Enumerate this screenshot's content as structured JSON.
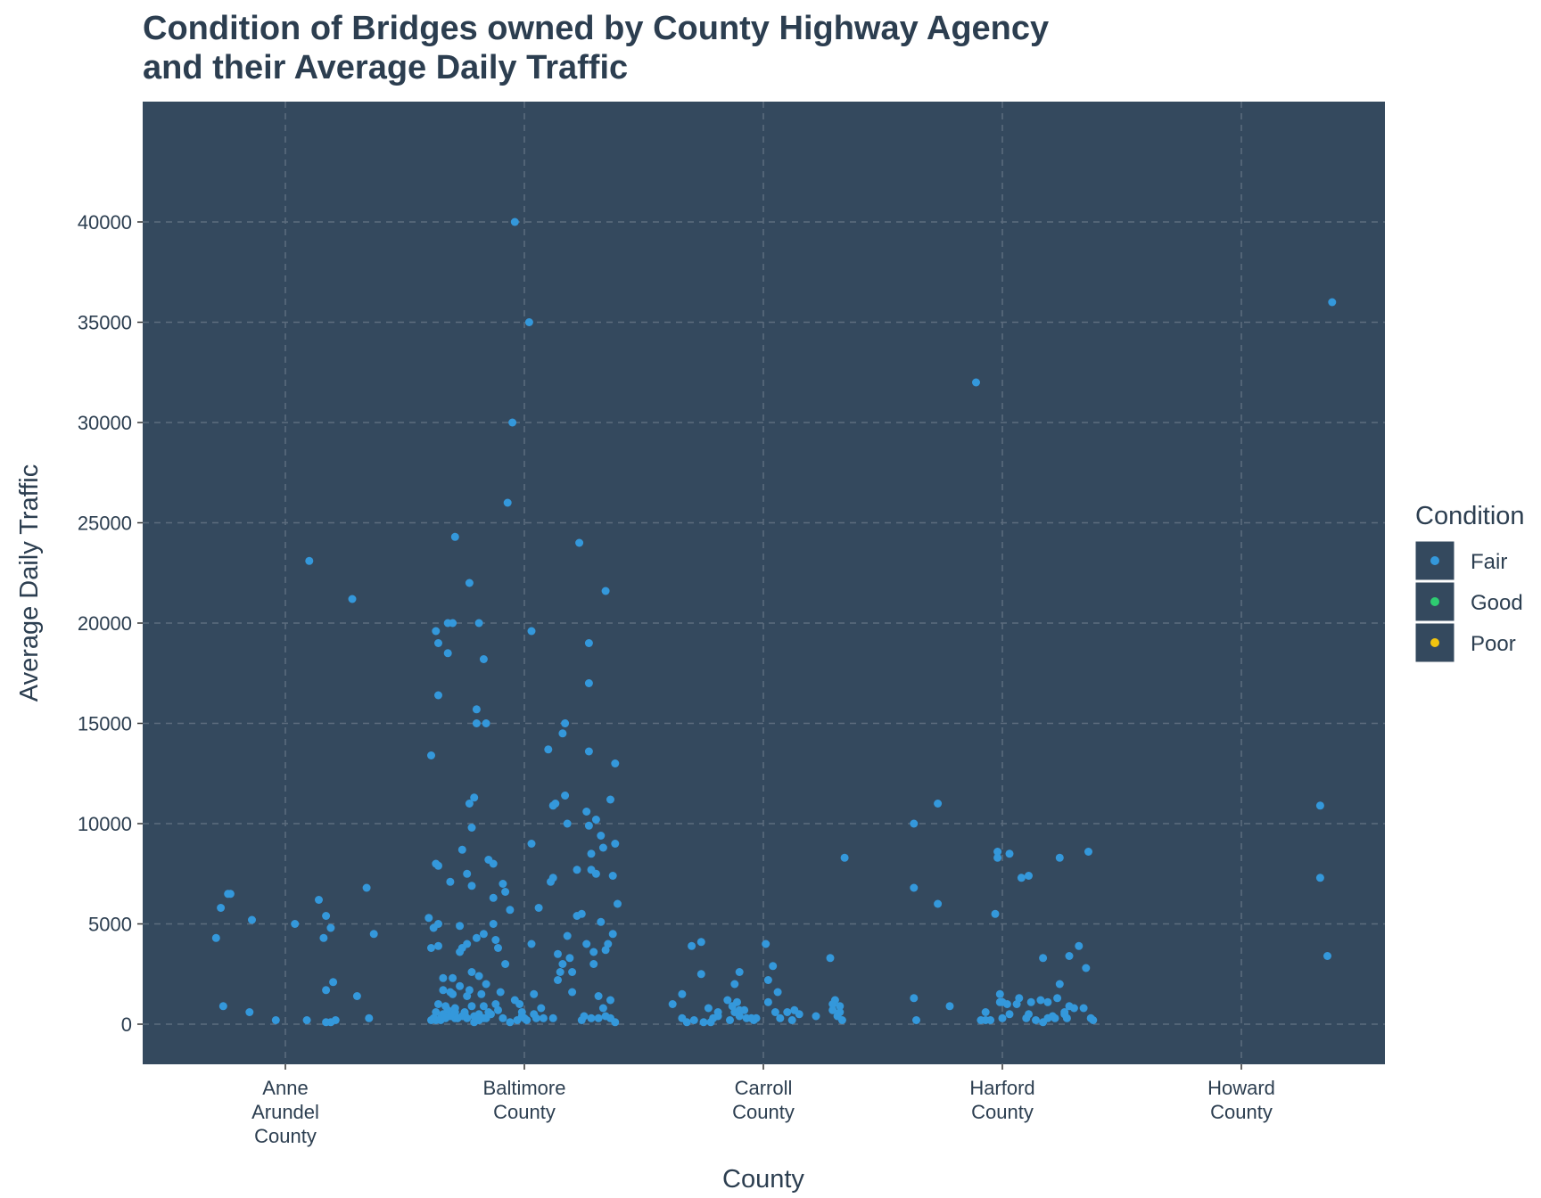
{
  "chart_data": {
    "type": "scatter",
    "title_lines": [
      "Condition of Bridges owned by County Highway Agency",
      "and their Average Daily Traffic"
    ],
    "xlabel": "County",
    "ylabel": "Average Daily Traffic",
    "categories": [
      {
        "lines": [
          "Anne",
          "Arundel",
          "County"
        ]
      },
      {
        "lines": [
          "Baltimore",
          "County"
        ]
      },
      {
        "lines": [
          "Carroll",
          "County"
        ]
      },
      {
        "lines": [
          "Harford",
          "County"
        ]
      },
      {
        "lines": [
          "Howard",
          "County"
        ]
      }
    ],
    "ylim": [
      -2000,
      46000
    ],
    "yticks": [
      0,
      5000,
      10000,
      15000,
      20000,
      25000,
      30000,
      35000,
      40000
    ],
    "ytick_labels": [
      "0",
      "5000",
      "10000",
      "15000",
      "20000",
      "25000",
      "30000",
      "35000",
      "40000"
    ],
    "grid": true,
    "panel_color": "#34495e",
    "grid_color": "#5d6d7e",
    "text_color": "#2c3e50",
    "legend": {
      "title": "Condition",
      "placement": "right",
      "items": [
        {
          "label": "Fair",
          "color": "#3498db"
        },
        {
          "label": "Good",
          "color": "#2ecc71"
        },
        {
          "label": "Poor",
          "color": "#f1c40f"
        }
      ]
    },
    "series": [
      {
        "name": "Fair",
        "color": "#3498db",
        "points": [
          [
            -0.29,
            4300
          ],
          [
            -0.27,
            5800
          ],
          [
            -0.26,
            900
          ],
          [
            -0.24,
            6500
          ],
          [
            -0.23,
            6500
          ],
          [
            -0.14,
            5200
          ],
          [
            -0.15,
            600
          ],
          [
            -0.04,
            200
          ],
          [
            0.04,
            5000
          ],
          [
            0.09,
            200
          ],
          [
            0.1,
            23100
          ],
          [
            0.14,
            6200
          ],
          [
            0.16,
            4300
          ],
          [
            0.17,
            5400
          ],
          [
            0.17,
            1700
          ],
          [
            0.17,
            100
          ],
          [
            0.19,
            4800
          ],
          [
            0.2,
            2100
          ],
          [
            0.19,
            100
          ],
          [
            0.21,
            200
          ],
          [
            0.28,
            21200
          ],
          [
            0.3,
            1400
          ],
          [
            0.34,
            6800
          ],
          [
            0.35,
            300
          ],
          [
            0.37,
            4500
          ],
          [
            -0.39,
            13400
          ],
          [
            -0.4,
            5300
          ],
          [
            -0.39,
            3800
          ],
          [
            -0.38,
            4800
          ],
          [
            -0.37,
            600
          ],
          [
            -0.37,
            19600
          ],
          [
            -0.37,
            8000
          ],
          [
            -0.36,
            5000
          ],
          [
            -0.36,
            7900
          ],
          [
            -0.36,
            19000
          ],
          [
            -0.36,
            16400
          ],
          [
            -0.36,
            3900
          ],
          [
            -0.35,
            300
          ],
          [
            -0.34,
            500
          ],
          [
            -0.34,
            1700
          ],
          [
            -0.34,
            2300
          ],
          [
            -0.33,
            300
          ],
          [
            -0.32,
            700
          ],
          [
            -0.32,
            20000
          ],
          [
            -0.32,
            18500
          ],
          [
            -0.31,
            7100
          ],
          [
            -0.3,
            2300
          ],
          [
            -0.3,
            20000
          ],
          [
            -0.29,
            24300
          ],
          [
            -0.29,
            300
          ],
          [
            -0.29,
            600
          ],
          [
            -0.27,
            1900
          ],
          [
            -0.27,
            4900
          ],
          [
            -0.27,
            3600
          ],
          [
            -0.26,
            8700
          ],
          [
            -0.26,
            400
          ],
          [
            -0.24,
            7500
          ],
          [
            -0.24,
            4000
          ],
          [
            -0.24,
            1400
          ],
          [
            -0.23,
            11000
          ],
          [
            -0.23,
            22000
          ],
          [
            -0.23,
            1700
          ],
          [
            -0.22,
            9800
          ],
          [
            -0.22,
            6900
          ],
          [
            -0.22,
            2600
          ],
          [
            -0.21,
            11300
          ],
          [
            -0.2,
            15700
          ],
          [
            -0.2,
            15000
          ],
          [
            -0.19,
            20000
          ],
          [
            -0.19,
            2400
          ],
          [
            -0.19,
            200
          ],
          [
            -0.19,
            500
          ],
          [
            -0.17,
            18200
          ],
          [
            -0.17,
            4500
          ],
          [
            -0.16,
            15000
          ],
          [
            -0.16,
            2000
          ],
          [
            -0.15,
            8200
          ],
          [
            -0.13,
            8000
          ],
          [
            -0.13,
            6300
          ],
          [
            -0.13,
            5000
          ],
          [
            -0.12,
            4200
          ],
          [
            -0.12,
            1000
          ],
          [
            -0.11,
            3800
          ],
          [
            -0.1,
            1600
          ],
          [
            -0.09,
            7000
          ],
          [
            -0.08,
            3000
          ],
          [
            -0.08,
            6600
          ],
          [
            -0.06,
            5700
          ],
          [
            -0.07,
            26000
          ],
          [
            -0.05,
            30000
          ],
          [
            -0.04,
            40000
          ],
          [
            -0.04,
            1200
          ],
          [
            -0.02,
            1000
          ],
          [
            -0.01,
            600
          ],
          [
            -0.01,
            400
          ],
          [
            0.0,
            300
          ],
          [
            0.01,
            200
          ],
          [
            0.02,
            35000
          ],
          [
            0.03,
            19600
          ],
          [
            0.03,
            9000
          ],
          [
            0.03,
            4000
          ],
          [
            0.04,
            1500
          ],
          [
            0.04,
            500
          ],
          [
            0.06,
            5800
          ],
          [
            0.07,
            800
          ],
          [
            0.08,
            300
          ],
          [
            0.1,
            13700
          ],
          [
            0.11,
            7100
          ],
          [
            0.12,
            10900
          ],
          [
            0.12,
            7300
          ],
          [
            0.13,
            11000
          ],
          [
            0.14,
            3500
          ],
          [
            0.14,
            2200
          ],
          [
            0.15,
            2600
          ],
          [
            0.16,
            3000
          ],
          [
            0.16,
            14500
          ],
          [
            0.17,
            15000
          ],
          [
            0.17,
            11400
          ],
          [
            0.18,
            10000
          ],
          [
            0.18,
            4400
          ],
          [
            0.19,
            3300
          ],
          [
            0.2,
            2600
          ],
          [
            0.2,
            1600
          ],
          [
            0.22,
            7700
          ],
          [
            0.22,
            5400
          ],
          [
            0.23,
            24000
          ],
          [
            0.24,
            5500
          ],
          [
            0.25,
            400
          ],
          [
            0.26,
            4000
          ],
          [
            0.26,
            10600
          ],
          [
            0.27,
            13600
          ],
          [
            0.27,
            19000
          ],
          [
            0.27,
            17000
          ],
          [
            0.27,
            9900
          ],
          [
            0.28,
            8500
          ],
          [
            0.28,
            7700
          ],
          [
            0.29,
            3600
          ],
          [
            0.29,
            3000
          ],
          [
            0.3,
            10200
          ],
          [
            0.3,
            7500
          ],
          [
            0.31,
            1400
          ],
          [
            0.32,
            9400
          ],
          [
            0.32,
            5100
          ],
          [
            0.33,
            8800
          ],
          [
            0.33,
            800
          ],
          [
            0.34,
            21600
          ],
          [
            0.34,
            3700
          ],
          [
            0.35,
            4000
          ],
          [
            0.36,
            11200
          ],
          [
            0.36,
            1200
          ],
          [
            0.37,
            7400
          ],
          [
            0.37,
            4500
          ],
          [
            0.38,
            9000
          ],
          [
            0.38,
            13000
          ],
          [
            0.39,
            6000
          ],
          [
            0.38,
            100
          ],
          [
            0.36,
            300
          ],
          [
            0.34,
            400
          ],
          [
            0.31,
            300
          ],
          [
            0.28,
            300
          ],
          [
            0.24,
            200
          ],
          [
            0.12,
            300
          ],
          [
            0.05,
            300
          ],
          [
            -0.03,
            200
          ],
          [
            -0.06,
            100
          ],
          [
            -0.09,
            300
          ],
          [
            -0.11,
            700
          ],
          [
            -0.14,
            500
          ],
          [
            -0.17,
            300
          ],
          [
            -0.21,
            100
          ],
          [
            -0.25,
            500
          ],
          [
            -0.28,
            300
          ],
          [
            -0.31,
            400
          ],
          [
            -0.35,
            200
          ],
          [
            -0.38,
            300
          ],
          [
            -0.39,
            200
          ],
          [
            -0.37,
            200
          ],
          [
            -0.36,
            1000
          ],
          [
            -0.33,
            900
          ],
          [
            -0.31,
            1600
          ],
          [
            -0.3,
            1500
          ],
          [
            -0.29,
            800
          ],
          [
            -0.28,
            300
          ],
          [
            -0.26,
            3800
          ],
          [
            -0.25,
            600
          ],
          [
            -0.24,
            300
          ],
          [
            -0.22,
            900
          ],
          [
            -0.21,
            400
          ],
          [
            -0.2,
            4300
          ],
          [
            -0.19,
            200
          ],
          [
            -0.18,
            1500
          ],
          [
            -0.17,
            900
          ],
          [
            -0.16,
            300
          ],
          [
            -0.15,
            600
          ],
          [
            -0.14,
            200
          ],
          [
            -0.12,
            600
          ],
          [
            -0.11,
            1100
          ],
          [
            -0.1,
            400
          ],
          [
            -0.08,
            700
          ],
          [
            -0.07,
            300
          ],
          [
            -0.05,
            300
          ],
          [
            -0.04,
            200
          ],
          [
            -0.03,
            300
          ],
          [
            0.01,
            4000
          ],
          [
            0.02,
            1100
          ],
          [
            0.02,
            2200
          ],
          [
            0.04,
            2900
          ],
          [
            0.05,
            600
          ],
          [
            0.06,
            1600
          ],
          [
            0.07,
            300
          ],
          [
            0.1,
            600
          ],
          [
            0.12,
            200
          ],
          [
            0.13,
            700
          ],
          [
            0.15,
            500
          ],
          [
            0.22,
            400
          ],
          [
            0.28,
            3300
          ],
          [
            0.29,
            1000
          ],
          [
            0.29,
            700
          ],
          [
            0.3,
            1200
          ],
          [
            0.31,
            400
          ],
          [
            0.32,
            900
          ],
          [
            0.32,
            600
          ],
          [
            0.33,
            200
          ],
          [
            0.34,
            8300
          ],
          [
            -0.38,
            1000
          ],
          [
            -0.34,
            1500
          ],
          [
            -0.34,
            300
          ],
          [
            -0.32,
            100
          ],
          [
            -0.29,
            200
          ],
          [
            -0.3,
            3900
          ],
          [
            -0.26,
            4100
          ],
          [
            -0.26,
            2500
          ],
          [
            -0.25,
            100
          ],
          [
            -0.23,
            800
          ],
          [
            -0.22,
            100
          ],
          [
            -0.21,
            300
          ],
          [
            -0.19,
            600
          ],
          [
            -0.19,
            400
          ],
          [
            -0.15,
            1200
          ],
          [
            -0.13,
            900
          ],
          [
            -0.12,
            2000
          ],
          [
            -0.1,
            2600
          ],
          [
            -0.1,
            700
          ],
          [
            -0.09,
            200
          ],
          [
            -0.07,
            600
          ],
          [
            -0.05,
            200
          ],
          [
            -0.02,
            8600
          ],
          [
            -0.02,
            8300
          ],
          [
            -0.01,
            1500
          ],
          [
            0.0,
            300
          ],
          [
            0.03,
            500
          ],
          [
            0.08,
            7300
          ],
          [
            0.1,
            300
          ],
          [
            0.11,
            500
          ],
          [
            0.12,
            1100
          ],
          [
            0.14,
            200
          ],
          [
            0.16,
            1200
          ],
          [
            0.19,
            1100
          ],
          [
            0.19,
            300
          ],
          [
            0.21,
            400
          ],
          [
            0.23,
            1300
          ],
          [
            0.24,
            8300
          ],
          [
            0.24,
            2000
          ],
          [
            0.26,
            600
          ],
          [
            0.27,
            300
          ],
          [
            0.28,
            900
          ],
          [
            0.3,
            800
          ],
          [
            0.32,
            3900
          ],
          [
            0.34,
            800
          ],
          [
            0.35,
            2800
          ],
          [
            0.36,
            8600
          ],
          [
            0.37,
            300
          ],
          [
            0.38,
            200
          ],
          [
            -0.36,
            200
          ],
          [
            -0.07,
            200
          ],
          [
            0.17,
            100
          ],
          [
            -0.37,
            6800
          ],
          [
            -0.37,
            1300
          ],
          [
            -0.37,
            10000
          ],
          [
            -0.27,
            11000
          ],
          [
            -0.27,
            6000
          ],
          [
            -0.22,
            900
          ],
          [
            -0.11,
            32000
          ],
          [
            -0.03,
            5500
          ],
          [
            -0.01,
            1100
          ],
          [
            0.0,
            1100
          ],
          [
            0.02,
            1000
          ],
          [
            0.03,
            8500
          ],
          [
            0.06,
            1000
          ],
          [
            0.07,
            1300
          ],
          [
            0.11,
            7400
          ],
          [
            0.17,
            3300
          ],
          [
            0.22,
            300
          ],
          [
            0.26,
            500
          ],
          [
            0.28,
            3400
          ],
          [
            0.33,
            10900
          ],
          [
            0.33,
            7300
          ],
          [
            0.36,
            3400
          ],
          [
            0.38,
            36000
          ]
        ]
      }
    ]
  }
}
